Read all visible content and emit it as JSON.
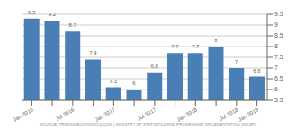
{
  "chart_data": {
    "type": "bar",
    "categories": [
      "Jan 2016",
      null,
      "Jul 2016",
      null,
      "Jan 2017",
      null,
      "Jul 2017",
      null,
      "Jan 2018",
      null,
      "Jul 2018",
      "Jan 2019"
    ],
    "values": [
      9.3,
      9.2,
      8.7,
      7.4,
      6.1,
      6.0,
      6.8,
      7.7,
      7.7,
      8.0,
      7.0,
      6.6
    ],
    "color": "#4a7fb5",
    "ylim": [
      5.5,
      9.5
    ],
    "yticks": [
      5.5,
      6.0,
      6.5,
      7.0,
      7.5,
      8.0,
      8.5,
      9.0,
      9.5
    ],
    "grid": true,
    "data_labels": true,
    "annotations": [
      "SOURCE: TRADINGECONOMICS.COM | MINISTRY OF STATISTICS AND PROGRAMME IMPLEMENTATION (MOSPI)"
    ]
  }
}
